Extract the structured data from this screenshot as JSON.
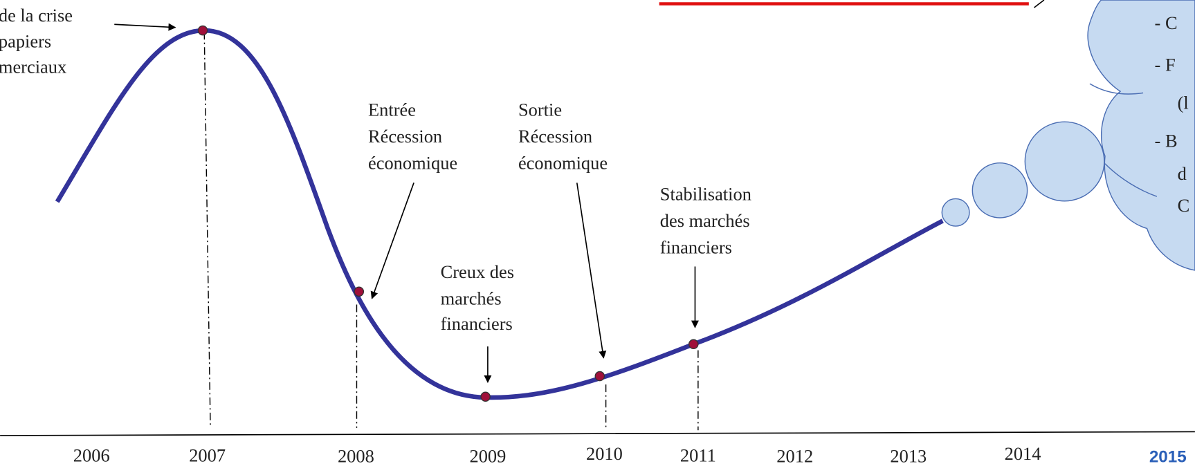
{
  "annotations": {
    "crisis_start": [
      "de la crise",
      "papiers",
      "merciaux"
    ],
    "recession_entry": [
      "Entrée",
      "Récession",
      "économique"
    ],
    "recession_exit": [
      "Sortie",
      "Récession",
      "économique"
    ],
    "market_trough": [
      "Creux des",
      "marchés",
      "financiers"
    ],
    "market_stabilisation": [
      "Stabilisation",
      "des marchés",
      "financiers"
    ]
  },
  "years": [
    "2006",
    "2007",
    "2008",
    "2009",
    "2010",
    "2011",
    "2012",
    "2013",
    "2014",
    "2015"
  ],
  "cloud_text": [
    "-  C",
    "-  F",
    "(l",
    "-  B",
    "d",
    "C"
  ]
}
